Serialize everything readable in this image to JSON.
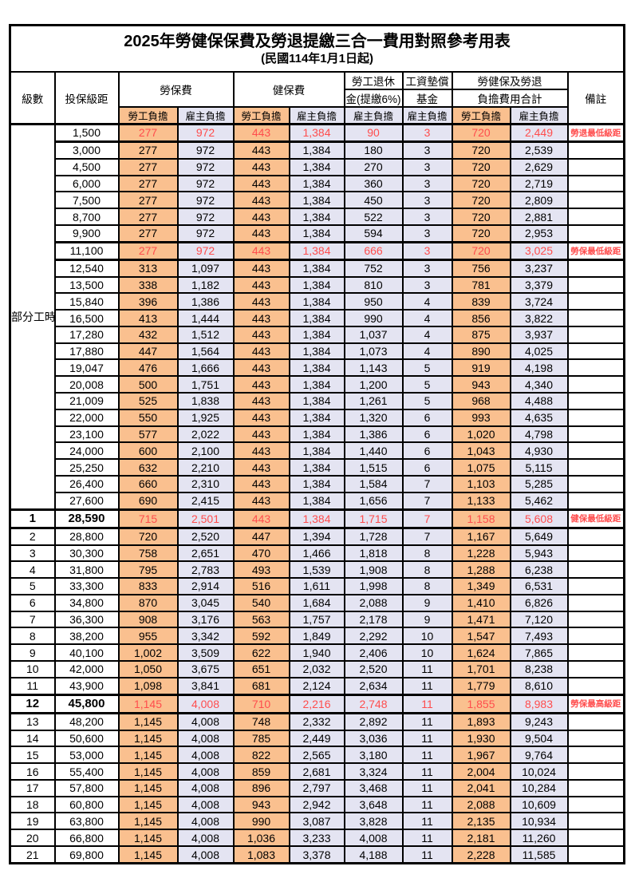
{
  "title": "2025年勞健保保費及勞退提繳三合一費用對照參考用表",
  "subtitle": "(民國114年1月1日起)",
  "colors": {
    "employee_bg": "#FAC08F",
    "employer_bg": "#E4E4F2",
    "highlight_red": "#FF4D4D"
  },
  "header": {
    "level": "級數",
    "bracket": "投保級距",
    "labor_insurance": "勞保費",
    "health_insurance": "健保費",
    "pension_line1": "勞工退休",
    "pension_line2": "金(提繳6%)",
    "wage_fund_line1": "工資墊償",
    "wage_fund_line2": "基金",
    "total_line1": "勞健保及勞退",
    "total_line2": "負擔費用合計",
    "remark": "備註",
    "employee_burden": "勞工負擔",
    "employer_burden": "雇主負擔"
  },
  "part_time_label": "部分工時",
  "column_bg_pattern": [
    "emp",
    "er",
    "emp",
    "er",
    "er",
    "er",
    "emp",
    "er"
  ],
  "rows": [
    {
      "level": null,
      "bracket": "1,500",
      "values": [
        "277",
        "972",
        "443",
        "1,384",
        "90",
        "3",
        "720",
        "2,449"
      ],
      "remark": "勞退最低級距",
      "red": true,
      "bold": false
    },
    {
      "level": null,
      "bracket": "3,000",
      "values": [
        "277",
        "972",
        "443",
        "1,384",
        "180",
        "3",
        "720",
        "2,539"
      ],
      "remark": "",
      "red": false,
      "bold": false
    },
    {
      "level": null,
      "bracket": "4,500",
      "values": [
        "277",
        "972",
        "443",
        "1,384",
        "270",
        "3",
        "720",
        "2,629"
      ],
      "remark": "",
      "red": false,
      "bold": false
    },
    {
      "level": null,
      "bracket": "6,000",
      "values": [
        "277",
        "972",
        "443",
        "1,384",
        "360",
        "3",
        "720",
        "2,719"
      ],
      "remark": "",
      "red": false,
      "bold": false
    },
    {
      "level": null,
      "bracket": "7,500",
      "values": [
        "277",
        "972",
        "443",
        "1,384",
        "450",
        "3",
        "720",
        "2,809"
      ],
      "remark": "",
      "red": false,
      "bold": false
    },
    {
      "level": null,
      "bracket": "8,700",
      "values": [
        "277",
        "972",
        "443",
        "1,384",
        "522",
        "3",
        "720",
        "2,881"
      ],
      "remark": "",
      "red": false,
      "bold": false
    },
    {
      "level": null,
      "bracket": "9,900",
      "values": [
        "277",
        "972",
        "443",
        "1,384",
        "594",
        "3",
        "720",
        "2,953"
      ],
      "remark": "",
      "red": false,
      "bold": false
    },
    {
      "level": null,
      "bracket": "11,100",
      "values": [
        "277",
        "972",
        "443",
        "1,384",
        "666",
        "3",
        "720",
        "3,025"
      ],
      "remark": "勞保最低級距",
      "red": true,
      "bold": false
    },
    {
      "level": null,
      "bracket": "12,540",
      "values": [
        "313",
        "1,097",
        "443",
        "1,384",
        "752",
        "3",
        "756",
        "3,237"
      ],
      "remark": "",
      "red": false,
      "bold": false
    },
    {
      "level": null,
      "bracket": "13,500",
      "values": [
        "338",
        "1,182",
        "443",
        "1,384",
        "810",
        "3",
        "781",
        "3,379"
      ],
      "remark": "",
      "red": false,
      "bold": false
    },
    {
      "level": null,
      "bracket": "15,840",
      "values": [
        "396",
        "1,386",
        "443",
        "1,384",
        "950",
        "4",
        "839",
        "3,724"
      ],
      "remark": "",
      "red": false,
      "bold": false
    },
    {
      "level": null,
      "bracket": "16,500",
      "values": [
        "413",
        "1,444",
        "443",
        "1,384",
        "990",
        "4",
        "856",
        "3,822"
      ],
      "remark": "",
      "red": false,
      "bold": false
    },
    {
      "level": null,
      "bracket": "17,280",
      "values": [
        "432",
        "1,512",
        "443",
        "1,384",
        "1,037",
        "4",
        "875",
        "3,937"
      ],
      "remark": "",
      "red": false,
      "bold": false
    },
    {
      "level": null,
      "bracket": "17,880",
      "values": [
        "447",
        "1,564",
        "443",
        "1,384",
        "1,073",
        "4",
        "890",
        "4,025"
      ],
      "remark": "",
      "red": false,
      "bold": false
    },
    {
      "level": null,
      "bracket": "19,047",
      "values": [
        "476",
        "1,666",
        "443",
        "1,384",
        "1,143",
        "5",
        "919",
        "4,198"
      ],
      "remark": "",
      "red": false,
      "bold": false
    },
    {
      "level": null,
      "bracket": "20,008",
      "values": [
        "500",
        "1,751",
        "443",
        "1,384",
        "1,200",
        "5",
        "943",
        "4,340"
      ],
      "remark": "",
      "red": false,
      "bold": false
    },
    {
      "level": null,
      "bracket": "21,009",
      "values": [
        "525",
        "1,838",
        "443",
        "1,384",
        "1,261",
        "5",
        "968",
        "4,488"
      ],
      "remark": "",
      "red": false,
      "bold": false
    },
    {
      "level": null,
      "bracket": "22,000",
      "values": [
        "550",
        "1,925",
        "443",
        "1,384",
        "1,320",
        "6",
        "993",
        "4,635"
      ],
      "remark": "",
      "red": false,
      "bold": false
    },
    {
      "level": null,
      "bracket": "23,100",
      "values": [
        "577",
        "2,022",
        "443",
        "1,384",
        "1,386",
        "6",
        "1,020",
        "4,798"
      ],
      "remark": "",
      "red": false,
      "bold": false
    },
    {
      "level": null,
      "bracket": "24,000",
      "values": [
        "600",
        "2,100",
        "443",
        "1,384",
        "1,440",
        "6",
        "1,043",
        "4,930"
      ],
      "remark": "",
      "red": false,
      "bold": false
    },
    {
      "level": null,
      "bracket": "25,250",
      "values": [
        "632",
        "2,210",
        "443",
        "1,384",
        "1,515",
        "6",
        "1,075",
        "5,115"
      ],
      "remark": "",
      "red": false,
      "bold": false
    },
    {
      "level": null,
      "bracket": "26,400",
      "values": [
        "660",
        "2,310",
        "443",
        "1,384",
        "1,584",
        "7",
        "1,103",
        "5,285"
      ],
      "remark": "",
      "red": false,
      "bold": false
    },
    {
      "level": null,
      "bracket": "27,600",
      "values": [
        "690",
        "2,415",
        "443",
        "1,384",
        "1,656",
        "7",
        "1,133",
        "5,462"
      ],
      "remark": "",
      "red": false,
      "bold": false
    },
    {
      "level": "1",
      "bracket": "28,590",
      "values": [
        "715",
        "2,501",
        "443",
        "1,384",
        "1,715",
        "7",
        "1,158",
        "5,608"
      ],
      "remark": "健保最低級距",
      "red": true,
      "bold": true
    },
    {
      "level": "2",
      "bracket": "28,800",
      "values": [
        "720",
        "2,520",
        "447",
        "1,394",
        "1,728",
        "7",
        "1,167",
        "5,649"
      ],
      "remark": "",
      "red": false,
      "bold": false
    },
    {
      "level": "3",
      "bracket": "30,300",
      "values": [
        "758",
        "2,651",
        "470",
        "1,466",
        "1,818",
        "8",
        "1,228",
        "5,943"
      ],
      "remark": "",
      "red": false,
      "bold": false
    },
    {
      "level": "4",
      "bracket": "31,800",
      "values": [
        "795",
        "2,783",
        "493",
        "1,539",
        "1,908",
        "8",
        "1,288",
        "6,238"
      ],
      "remark": "",
      "red": false,
      "bold": false
    },
    {
      "level": "5",
      "bracket": "33,300",
      "values": [
        "833",
        "2,914",
        "516",
        "1,611",
        "1,998",
        "8",
        "1,349",
        "6,531"
      ],
      "remark": "",
      "red": false,
      "bold": false
    },
    {
      "level": "6",
      "bracket": "34,800",
      "values": [
        "870",
        "3,045",
        "540",
        "1,684",
        "2,088",
        "9",
        "1,410",
        "6,826"
      ],
      "remark": "",
      "red": false,
      "bold": false
    },
    {
      "level": "7",
      "bracket": "36,300",
      "values": [
        "908",
        "3,176",
        "563",
        "1,757",
        "2,178",
        "9",
        "1,471",
        "7,120"
      ],
      "remark": "",
      "red": false,
      "bold": false
    },
    {
      "level": "8",
      "bracket": "38,200",
      "values": [
        "955",
        "3,342",
        "592",
        "1,849",
        "2,292",
        "10",
        "1,547",
        "7,493"
      ],
      "remark": "",
      "red": false,
      "bold": false
    },
    {
      "level": "9",
      "bracket": "40,100",
      "values": [
        "1,002",
        "3,509",
        "622",
        "1,940",
        "2,406",
        "10",
        "1,624",
        "7,865"
      ],
      "remark": "",
      "red": false,
      "bold": false
    },
    {
      "level": "10",
      "bracket": "42,000",
      "values": [
        "1,050",
        "3,675",
        "651",
        "2,032",
        "2,520",
        "11",
        "1,701",
        "8,238"
      ],
      "remark": "",
      "red": false,
      "bold": false
    },
    {
      "level": "11",
      "bracket": "43,900",
      "values": [
        "1,098",
        "3,841",
        "681",
        "2,124",
        "2,634",
        "11",
        "1,779",
        "8,610"
      ],
      "remark": "",
      "red": false,
      "bold": false
    },
    {
      "level": "12",
      "bracket": "45,800",
      "values": [
        "1,145",
        "4,008",
        "710",
        "2,216",
        "2,748",
        "11",
        "1,855",
        "8,983"
      ],
      "remark": "勞保最高級距",
      "red": true,
      "bold": true
    },
    {
      "level": "13",
      "bracket": "48,200",
      "values": [
        "1,145",
        "4,008",
        "748",
        "2,332",
        "2,892",
        "11",
        "1,893",
        "9,243"
      ],
      "remark": "",
      "red": false,
      "bold": false
    },
    {
      "level": "14",
      "bracket": "50,600",
      "values": [
        "1,145",
        "4,008",
        "785",
        "2,449",
        "3,036",
        "11",
        "1,930",
        "9,504"
      ],
      "remark": "",
      "red": false,
      "bold": false
    },
    {
      "level": "15",
      "bracket": "53,000",
      "values": [
        "1,145",
        "4,008",
        "822",
        "2,565",
        "3,180",
        "11",
        "1,967",
        "9,764"
      ],
      "remark": "",
      "red": false,
      "bold": false
    },
    {
      "level": "16",
      "bracket": "55,400",
      "values": [
        "1,145",
        "4,008",
        "859",
        "2,681",
        "3,324",
        "11",
        "2,004",
        "10,024"
      ],
      "remark": "",
      "red": false,
      "bold": false
    },
    {
      "level": "17",
      "bracket": "57,800",
      "values": [
        "1,145",
        "4,008",
        "896",
        "2,797",
        "3,468",
        "11",
        "2,041",
        "10,284"
      ],
      "remark": "",
      "red": false,
      "bold": false
    },
    {
      "level": "18",
      "bracket": "60,800",
      "values": [
        "1,145",
        "4,008",
        "943",
        "2,942",
        "3,648",
        "11",
        "2,088",
        "10,609"
      ],
      "remark": "",
      "red": false,
      "bold": false
    },
    {
      "level": "19",
      "bracket": "63,800",
      "values": [
        "1,145",
        "4,008",
        "990",
        "3,087",
        "3,828",
        "11",
        "2,135",
        "10,934"
      ],
      "remark": "",
      "red": false,
      "bold": false
    },
    {
      "level": "20",
      "bracket": "66,800",
      "values": [
        "1,145",
        "4,008",
        "1,036",
        "3,233",
        "4,008",
        "11",
        "2,181",
        "11,260"
      ],
      "remark": "",
      "red": false,
      "bold": false
    },
    {
      "level": "21",
      "bracket": "69,800",
      "values": [
        "1,145",
        "4,008",
        "1,083",
        "3,378",
        "4,188",
        "11",
        "2,228",
        "11,585"
      ],
      "remark": "",
      "red": false,
      "bold": false
    }
  ]
}
